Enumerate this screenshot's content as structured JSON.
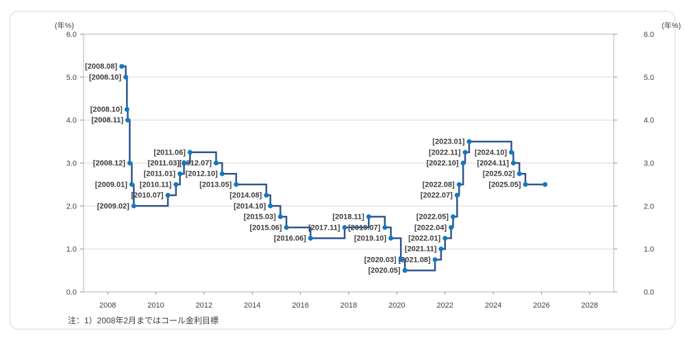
{
  "chart_data": {
    "type": "line",
    "subtype": "step-after",
    "title": "",
    "y_unit_left": "(年%)",
    "y_unit_right": "(年%)",
    "ylim": [
      0.0,
      6.0
    ],
    "yticks": [
      {
        "value": 0,
        "label": "0.0"
      },
      {
        "value": 1,
        "label": "1.0"
      },
      {
        "value": 2,
        "label": "2.0"
      },
      {
        "value": 3,
        "label": "3.0"
      },
      {
        "value": 4,
        "label": "4.0"
      },
      {
        "value": 5,
        "label": "5.0"
      },
      {
        "value": 6,
        "label": "6.0"
      }
    ],
    "xlim": [
      2007,
      2029
    ],
    "xticks": [
      {
        "value": 2008,
        "label": "2008"
      },
      {
        "value": 2010,
        "label": "2010"
      },
      {
        "value": 2012,
        "label": "2012"
      },
      {
        "value": 2014,
        "label": "2014"
      },
      {
        "value": 2016,
        "label": "2016"
      },
      {
        "value": 2018,
        "label": "2018"
      },
      {
        "value": 2020,
        "label": "2020"
      },
      {
        "value": 2022,
        "label": "2022"
      },
      {
        "value": 2024,
        "label": "2024"
      },
      {
        "value": 2026,
        "label": "2026"
      },
      {
        "value": 2028,
        "label": "2028"
      }
    ],
    "grid": "horizontal",
    "legend": "none",
    "note": "注：1）2008年2月まではコール金利目標",
    "points": [
      {
        "label": "[2008.08]",
        "x": 2008.583,
        "y": 5.25
      },
      {
        "label": "[2008.10]",
        "x": 2008.75,
        "y": 5.0
      },
      {
        "label": "[2008.10]",
        "x": 2008.8,
        "y": 4.25
      },
      {
        "label": "[2008.11]",
        "x": 2008.833,
        "y": 4.0
      },
      {
        "label": "[2008.12]",
        "x": 2008.917,
        "y": 3.0
      },
      {
        "label": "[2009.01]",
        "x": 2009.0,
        "y": 2.5
      },
      {
        "label": "[2009.02]",
        "x": 2009.083,
        "y": 2.0
      },
      {
        "label": "[2010.07]",
        "x": 2010.5,
        "y": 2.25
      },
      {
        "label": "[2010.11]",
        "x": 2010.833,
        "y": 2.5
      },
      {
        "label": "[2011.01]",
        "x": 2011.0,
        "y": 2.75
      },
      {
        "label": "[2011.03]",
        "x": 2011.167,
        "y": 3.0
      },
      {
        "label": "[2011.06]",
        "x": 2011.417,
        "y": 3.25
      },
      {
        "label": "[2012.07]",
        "x": 2012.5,
        "y": 3.0
      },
      {
        "label": "[2012.10]",
        "x": 2012.75,
        "y": 2.75
      },
      {
        "label": "[2013.05]",
        "x": 2013.333,
        "y": 2.5
      },
      {
        "label": "[2014.08]",
        "x": 2014.583,
        "y": 2.25
      },
      {
        "label": "[2014.10]",
        "x": 2014.75,
        "y": 2.0
      },
      {
        "label": "[2015.03]",
        "x": 2015.167,
        "y": 1.75
      },
      {
        "label": "[2015.06]",
        "x": 2015.417,
        "y": 1.5
      },
      {
        "label": "[2016.06]",
        "x": 2016.417,
        "y": 1.25
      },
      {
        "label": "[2017.11]",
        "x": 2017.833,
        "y": 1.5
      },
      {
        "label": "[2018.11]",
        "x": 2018.833,
        "y": 1.75
      },
      {
        "label": "[2019.07]",
        "x": 2019.5,
        "y": 1.5
      },
      {
        "label": "[2019.10]",
        "x": 2019.75,
        "y": 1.25
      },
      {
        "label": "[2020.03]",
        "x": 2020.167,
        "y": 0.75
      },
      {
        "label": "[2020.05]",
        "x": 2020.333,
        "y": 0.5
      },
      {
        "label": "[2021.08]",
        "x": 2021.583,
        "y": 0.75
      },
      {
        "label": "[2021.11]",
        "x": 2021.833,
        "y": 1.0
      },
      {
        "label": "[2022.01]",
        "x": 2022.0,
        "y": 1.25
      },
      {
        "label": "[2022.04]",
        "x": 2022.25,
        "y": 1.5
      },
      {
        "label": "[2022.05]",
        "x": 2022.333,
        "y": 1.75
      },
      {
        "label": "[2022.07]",
        "x": 2022.5,
        "y": 2.25
      },
      {
        "label": "[2022.08]",
        "x": 2022.583,
        "y": 2.5
      },
      {
        "label": "[2022.10]",
        "x": 2022.75,
        "y": 3.0
      },
      {
        "label": "[2022.11]",
        "x": 2022.833,
        "y": 3.25
      },
      {
        "label": "[2023.01]",
        "x": 2023.0,
        "y": 3.5
      },
      {
        "label": "[2024.10]",
        "x": 2024.75,
        "y": 3.25
      },
      {
        "label": "[2024.11]",
        "x": 2024.833,
        "y": 3.0
      },
      {
        "label": "[2025.02]",
        "x": 2025.083,
        "y": 2.75
      },
      {
        "label": "[2025.05]",
        "x": 2025.333,
        "y": 2.5
      }
    ],
    "line_end": {
      "x": 2026.15,
      "y": 2.5
    },
    "colors": {
      "line": "#2e5493",
      "dot": "#1478bd",
      "grid": "#d9d9d9",
      "border": "#b3b3b3",
      "tick": "#8c8c8c",
      "axis_text": "#404040",
      "point_label": "#3d3d3d"
    }
  }
}
